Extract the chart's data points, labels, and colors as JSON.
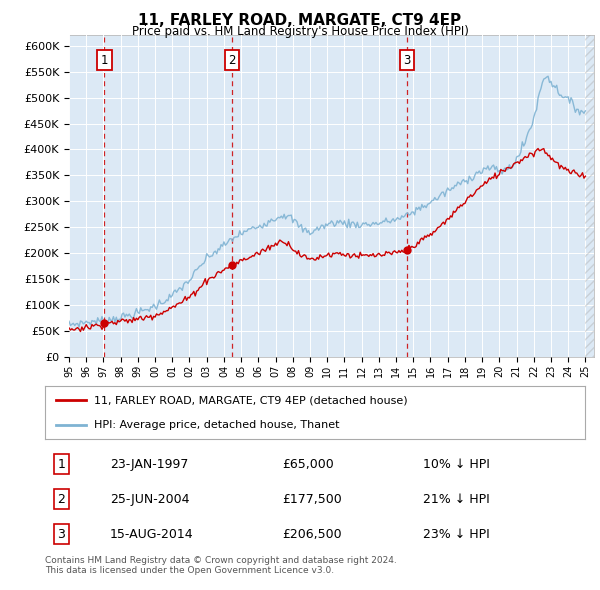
{
  "title": "11, FARLEY ROAD, MARGATE, CT9 4EP",
  "subtitle": "Price paid vs. HM Land Registry's House Price Index (HPI)",
  "background_color": "#dce9f5",
  "ylim": [
    0,
    620000
  ],
  "yticks": [
    0,
    50000,
    100000,
    150000,
    200000,
    250000,
    300000,
    350000,
    400000,
    450000,
    500000,
    550000,
    600000
  ],
  "xlim_start": 1995.0,
  "xlim_end": 2025.5,
  "sale_year_nums": [
    1997.06,
    2004.48,
    2014.62
  ],
  "sale_prices": [
    65000,
    177500,
    206500
  ],
  "sale_labels": [
    "1",
    "2",
    "3"
  ],
  "sale_pct": [
    "10%",
    "21%",
    "23%"
  ],
  "sale_label_dates": [
    "23-JAN-1997",
    "25-JUN-2004",
    "15-AUG-2014"
  ],
  "sale_label_prices": [
    "£65,000",
    "£177,500",
    "£206,500"
  ],
  "red_color": "#cc0000",
  "blue_color": "#7fb3d3",
  "hpi_anchors": {
    "1995.0": 62000,
    "1996.0": 67000,
    "1997.0": 70000,
    "1998.0": 76000,
    "1999.0": 85000,
    "2000.0": 98000,
    "2001.0": 118000,
    "2002.0": 148000,
    "2003.0": 190000,
    "2004.0": 215000,
    "2004.5": 228000,
    "2005.0": 238000,
    "2006.0": 252000,
    "2007.0": 268000,
    "2007.5": 275000,
    "2008.0": 265000,
    "2008.5": 248000,
    "2009.0": 240000,
    "2009.5": 248000,
    "2010.0": 255000,
    "2010.5": 260000,
    "2011.0": 258000,
    "2012.0": 255000,
    "2013.0": 258000,
    "2014.0": 265000,
    "2014.5": 270000,
    "2015.0": 280000,
    "2016.0": 298000,
    "2017.0": 320000,
    "2018.0": 340000,
    "2019.0": 360000,
    "2019.5": 365000,
    "2020.0": 358000,
    "2020.5": 362000,
    "2021.0": 380000,
    "2021.5": 415000,
    "2022.0": 460000,
    "2022.5": 530000,
    "2022.75": 545000,
    "2023.0": 530000,
    "2023.5": 510000,
    "2024.0": 495000,
    "2024.5": 478000,
    "2025.0": 472000
  },
  "red_anchors": {
    "1995.0": 53000,
    "1996.0": 57000,
    "1997.0": 63000,
    "1997.1": 65000,
    "1998.0": 68000,
    "1999.0": 73000,
    "2000.0": 81000,
    "2001.0": 95000,
    "2002.0": 115000,
    "2003.0": 148000,
    "2004.0": 168000,
    "2004.48": 177500,
    "2005.0": 185000,
    "2006.0": 200000,
    "2007.0": 218000,
    "2007.5": 225000,
    "2008.0": 210000,
    "2008.5": 195000,
    "2009.0": 188000,
    "2009.5": 192000,
    "2010.0": 197000,
    "2010.5": 200000,
    "2011.0": 198000,
    "2012.0": 194000,
    "2013.0": 196000,
    "2014.0": 200000,
    "2014.62": 206500,
    "2015.0": 215000,
    "2016.0": 235000,
    "2017.0": 265000,
    "2018.0": 300000,
    "2019.0": 330000,
    "2020.0": 355000,
    "2021.0": 375000,
    "2022.0": 395000,
    "2022.5": 402000,
    "2023.0": 385000,
    "2023.5": 368000,
    "2024.0": 358000,
    "2024.5": 352000,
    "2025.0": 350000
  },
  "legend_label_red": "11, FARLEY ROAD, MARGATE, CT9 4EP (detached house)",
  "legend_label_blue": "HPI: Average price, detached house, Thanet",
  "footer": "Contains HM Land Registry data © Crown copyright and database right 2024.\nThis data is licensed under the Open Government Licence v3.0."
}
